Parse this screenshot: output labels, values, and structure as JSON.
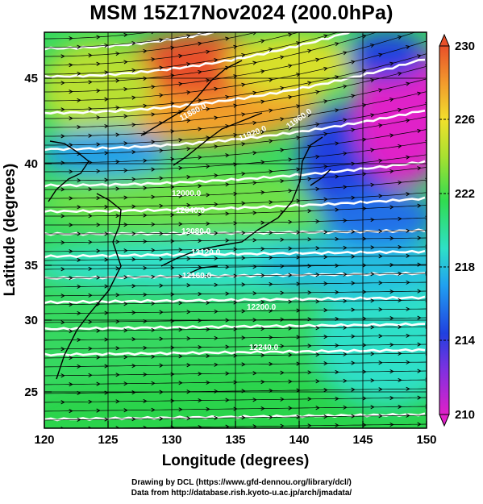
{
  "title": "MSM 15Z17Nov2024 (200.0hPa)",
  "x_axis": {
    "label": "Longitude (degrees)",
    "ticks": [
      "120",
      "125",
      "130",
      "135",
      "140",
      "145",
      "150"
    ]
  },
  "y_axis": {
    "label": "Latitude  (degrees)",
    "ticks": [
      "25",
      "30",
      "35",
      "40",
      "45"
    ]
  },
  "colorbar": {
    "ticks": [
      "230",
      "226",
      "222",
      "218",
      "214",
      "210"
    ],
    "range": [
      210,
      230
    ],
    "extended_both": true
  },
  "contour_labels": [
    "11880.0",
    "11920.0",
    "11960.0",
    "12000.0",
    "12040.0",
    "12080.0",
    "12120.0",
    "12160.0",
    "12200.0",
    "12240.0"
  ],
  "colors": {
    "hot": "#e8502a",
    "warm": "#f2c72c",
    "mid": "#2fdc5a",
    "cool": "#2ee0c8",
    "cold": "#2040e0",
    "coldest": "#e020c8"
  },
  "credits": {
    "line1": "Drawing by DCL (https://www.gfd-dennou.org/library/dcl/)",
    "line2": "Data from http://database.rish.kyoto-u.ac.jp/arch/jmadata/"
  }
}
